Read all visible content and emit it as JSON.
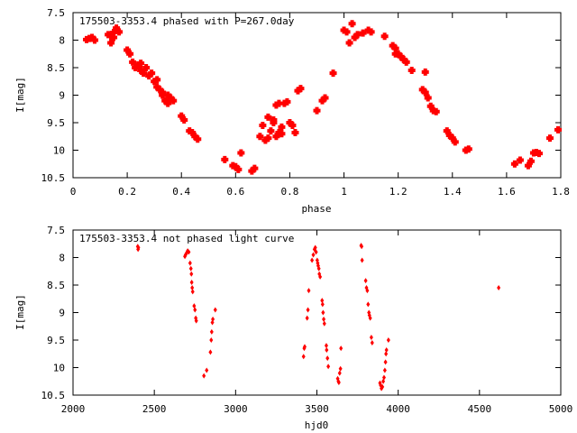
{
  "chart_data": [
    {
      "type": "scatter",
      "title": "175503-3353.4 phased with P=267.0day",
      "xlabel": "phase",
      "ylabel": "I[mag]",
      "xlim": [
        0,
        1.8
      ],
      "ylim": [
        10.5,
        7.5
      ],
      "y_inverted": true,
      "grid": false,
      "marker_color": "#ff0000",
      "xticks": [
        "0",
        "0.2",
        "0.4",
        "0.6",
        "0.8",
        "1",
        "1.2",
        "1.4",
        "1.6",
        "1.8"
      ],
      "yticks": [
        "7.5",
        "8",
        "8.5",
        "9",
        "9.5",
        "10",
        "10.5"
      ],
      "points": [
        [
          0.05,
          7.99
        ],
        [
          0.06,
          7.97
        ],
        [
          0.07,
          7.95
        ],
        [
          0.08,
          8.0
        ],
        [
          0.13,
          7.9
        ],
        [
          0.14,
          7.92
        ],
        [
          0.14,
          8.05
        ],
        [
          0.15,
          7.86
        ],
        [
          0.15,
          7.95
        ],
        [
          0.16,
          7.78
        ],
        [
          0.17,
          7.85
        ],
        [
          0.2,
          8.18
        ],
        [
          0.21,
          8.25
        ],
        [
          0.22,
          8.4
        ],
        [
          0.23,
          8.5
        ],
        [
          0.24,
          8.45
        ],
        [
          0.25,
          8.42
        ],
        [
          0.25,
          8.55
        ],
        [
          0.26,
          8.6
        ],
        [
          0.27,
          8.5
        ],
        [
          0.28,
          8.65
        ],
        [
          0.29,
          8.6
        ],
        [
          0.3,
          8.75
        ],
        [
          0.31,
          8.85
        ],
        [
          0.31,
          8.72
        ],
        [
          0.32,
          8.9
        ],
        [
          0.33,
          9.0
        ],
        [
          0.33,
          8.95
        ],
        [
          0.34,
          9.1
        ],
        [
          0.35,
          9.15
        ],
        [
          0.35,
          9.0
        ],
        [
          0.36,
          9.05
        ],
        [
          0.37,
          9.1
        ],
        [
          0.4,
          9.38
        ],
        [
          0.41,
          9.45
        ],
        [
          0.43,
          9.65
        ],
        [
          0.44,
          9.68
        ],
        [
          0.45,
          9.75
        ],
        [
          0.46,
          9.8
        ],
        [
          0.56,
          10.17
        ],
        [
          0.59,
          10.28
        ],
        [
          0.6,
          10.3
        ],
        [
          0.61,
          10.35
        ],
        [
          0.62,
          10.05
        ],
        [
          0.66,
          10.38
        ],
        [
          0.67,
          10.33
        ],
        [
          0.69,
          9.75
        ],
        [
          0.7,
          9.55
        ],
        [
          0.71,
          9.82
        ],
        [
          0.72,
          9.4
        ],
        [
          0.72,
          9.78
        ],
        [
          0.73,
          9.65
        ],
        [
          0.74,
          9.5
        ],
        [
          0.74,
          9.45
        ],
        [
          0.75,
          9.18
        ],
        [
          0.75,
          9.75
        ],
        [
          0.76,
          9.68
        ],
        [
          0.76,
          9.15
        ],
        [
          0.77,
          9.7
        ],
        [
          0.77,
          9.58
        ],
        [
          0.78,
          9.15
        ],
        [
          0.79,
          9.12
        ],
        [
          0.8,
          9.5
        ],
        [
          0.81,
          9.55
        ],
        [
          0.82,
          9.68
        ],
        [
          0.83,
          8.92
        ],
        [
          0.84,
          8.88
        ],
        [
          0.9,
          9.28
        ],
        [
          0.92,
          9.1
        ],
        [
          0.93,
          9.05
        ],
        [
          0.96,
          8.6
        ],
        [
          1.0,
          7.82
        ],
        [
          1.01,
          7.85
        ],
        [
          1.02,
          8.05
        ],
        [
          1.03,
          7.7
        ],
        [
          1.04,
          7.95
        ],
        [
          1.05,
          7.9
        ],
        [
          1.07,
          7.87
        ],
        [
          1.09,
          7.82
        ],
        [
          1.1,
          7.85
        ],
        [
          1.15,
          7.93
        ],
        [
          1.18,
          8.1
        ],
        [
          1.19,
          8.15
        ],
        [
          1.19,
          8.25
        ],
        [
          1.2,
          8.25
        ],
        [
          1.21,
          8.3
        ],
        [
          1.22,
          8.35
        ],
        [
          1.23,
          8.4
        ],
        [
          1.25,
          8.55
        ],
        [
          1.29,
          8.9
        ],
        [
          1.3,
          8.95
        ],
        [
          1.3,
          8.58
        ],
        [
          1.31,
          9.05
        ],
        [
          1.32,
          9.2
        ],
        [
          1.33,
          9.28
        ],
        [
          1.34,
          9.3
        ],
        [
          1.38,
          9.65
        ],
        [
          1.39,
          9.73
        ],
        [
          1.4,
          9.78
        ],
        [
          1.41,
          9.85
        ],
        [
          1.45,
          10.0
        ],
        [
          1.46,
          9.98
        ],
        [
          1.63,
          10.25
        ],
        [
          1.65,
          10.18
        ],
        [
          1.68,
          10.28
        ],
        [
          1.69,
          10.2
        ],
        [
          1.7,
          10.05
        ],
        [
          1.71,
          10.04
        ],
        [
          1.72,
          10.06
        ],
        [
          1.76,
          9.78
        ],
        [
          1.79,
          9.63
        ]
      ]
    },
    {
      "type": "scatter",
      "title": "175503-3353.4 not phased light curve",
      "xlabel": "hjd0",
      "ylabel": "I[mag]",
      "xlim": [
        2000,
        5000
      ],
      "ylim": [
        10.5,
        7.5
      ],
      "y_inverted": true,
      "grid": false,
      "marker_color": "#ff0000",
      "xticks": [
        "2000",
        "2500",
        "3000",
        "3500",
        "4000",
        "4500",
        "5000"
      ],
      "yticks": [
        "7.5",
        "8",
        "8.5",
        "9",
        "9.5",
        "10",
        "10.5"
      ],
      "points": [
        [
          2398,
          7.8
        ],
        [
          2400,
          7.85
        ],
        [
          2402,
          7.82
        ],
        [
          2688,
          7.98
        ],
        [
          2692,
          7.95
        ],
        [
          2698,
          7.92
        ],
        [
          2705,
          7.88
        ],
        [
          2712,
          7.9
        ],
        [
          2720,
          8.1
        ],
        [
          2725,
          8.2
        ],
        [
          2728,
          8.3
        ],
        [
          2730,
          8.45
        ],
        [
          2733,
          8.55
        ],
        [
          2736,
          8.62
        ],
        [
          2745,
          8.88
        ],
        [
          2750,
          8.95
        ],
        [
          2755,
          9.1
        ],
        [
          2758,
          9.15
        ],
        [
          2805,
          10.15
        ],
        [
          2822,
          10.05
        ],
        [
          2845,
          9.72
        ],
        [
          2850,
          9.5
        ],
        [
          2853,
          9.35
        ],
        [
          2857,
          9.18
        ],
        [
          2860,
          9.12
        ],
        [
          2875,
          8.95
        ],
        [
          3418,
          9.8
        ],
        [
          3422,
          9.65
        ],
        [
          3425,
          9.62
        ],
        [
          3440,
          9.1
        ],
        [
          3445,
          8.95
        ],
        [
          3450,
          8.6
        ],
        [
          3470,
          8.05
        ],
        [
          3478,
          7.95
        ],
        [
          3485,
          7.85
        ],
        [
          3490,
          7.82
        ],
        [
          3495,
          7.9
        ],
        [
          3502,
          8.05
        ],
        [
          3505,
          8.1
        ],
        [
          3508,
          8.15
        ],
        [
          3512,
          8.2
        ],
        [
          3515,
          8.3
        ],
        [
          3520,
          8.35
        ],
        [
          3532,
          8.78
        ],
        [
          3535,
          8.85
        ],
        [
          3538,
          9.0
        ],
        [
          3542,
          9.12
        ],
        [
          3546,
          9.2
        ],
        [
          3558,
          9.6
        ],
        [
          3560,
          9.68
        ],
        [
          3565,
          9.83
        ],
        [
          3570,
          9.98
        ],
        [
          3628,
          10.2
        ],
        [
          3632,
          10.25
        ],
        [
          3635,
          10.27
        ],
        [
          3640,
          10.1
        ],
        [
          3645,
          10.02
        ],
        [
          3648,
          9.65
        ],
        [
          3772,
          7.78
        ],
        [
          3775,
          7.8
        ],
        [
          3778,
          8.05
        ],
        [
          3800,
          8.42
        ],
        [
          3805,
          8.55
        ],
        [
          3810,
          8.6
        ],
        [
          3815,
          8.85
        ],
        [
          3820,
          9.0
        ],
        [
          3823,
          9.05
        ],
        [
          3828,
          9.1
        ],
        [
          3835,
          9.45
        ],
        [
          3840,
          9.55
        ],
        [
          3888,
          10.28
        ],
        [
          3892,
          10.32
        ],
        [
          3897,
          10.38
        ],
        [
          3903,
          10.35
        ],
        [
          3908,
          10.25
        ],
        [
          3913,
          10.18
        ],
        [
          3918,
          10.05
        ],
        [
          3922,
          9.9
        ],
        [
          3925,
          9.75
        ],
        [
          3928,
          9.68
        ],
        [
          3940,
          9.5
        ],
        [
          4618,
          8.55
        ]
      ]
    }
  ]
}
